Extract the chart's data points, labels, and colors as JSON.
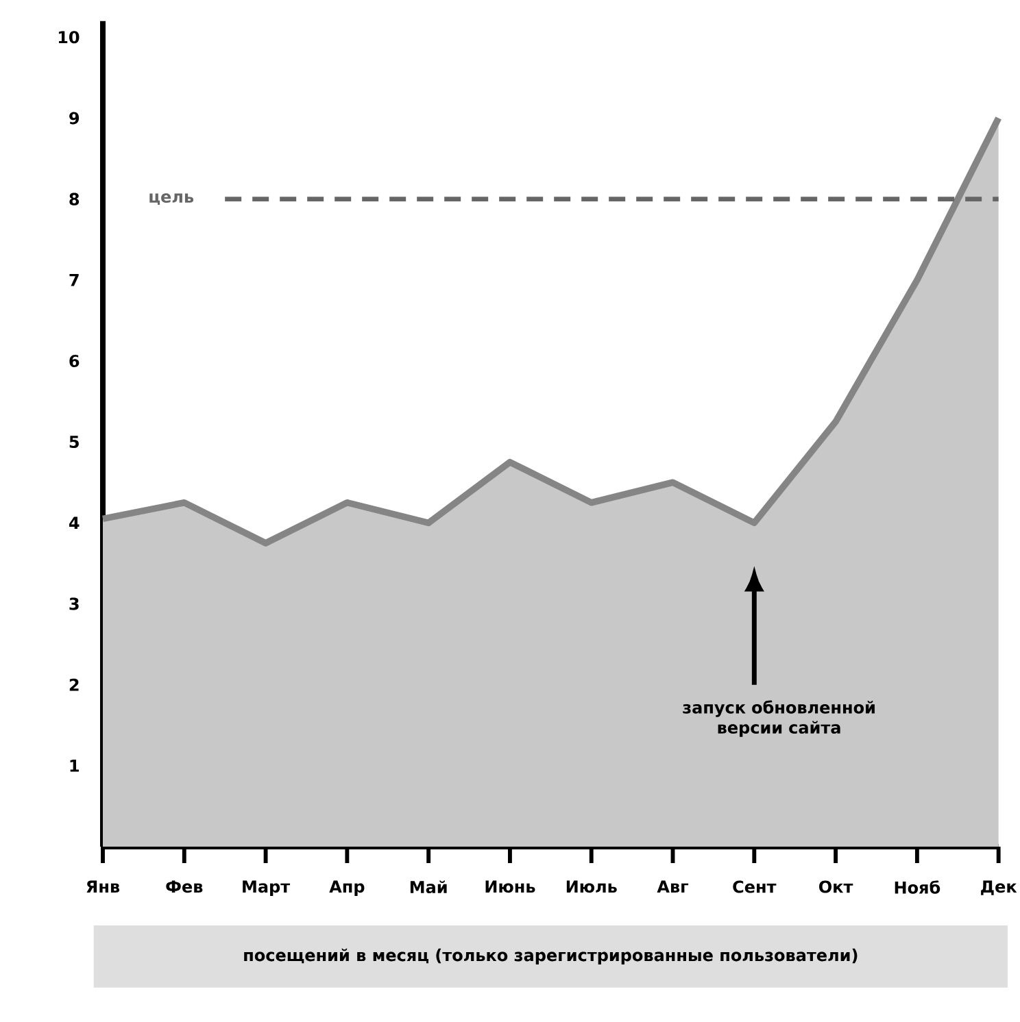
{
  "chart_data": {
    "type": "area",
    "categories": [
      "Янв",
      "Фев",
      "Март",
      "Апр",
      "Май",
      "Июнь",
      "Июль",
      "Авг",
      "Сент",
      "Окт",
      "Нояб",
      "Дек"
    ],
    "series": [
      {
        "color": "#858585",
        "values": [
          4.05,
          4.25,
          3.75,
          4.25,
          4.0,
          4.75,
          4.25,
          4.5,
          4.0,
          5.25,
          7.0,
          9.0
        ]
      }
    ],
    "ylim": [
      0,
      10.2
    ],
    "yticks": [
      1,
      2,
      3,
      4,
      5,
      6,
      7,
      8,
      9,
      10
    ],
    "xlabel": "посещений в месяц (только зарегистрированные пользователи)",
    "ref_lines": [
      {
        "axis": "y",
        "value": 8,
        "label": "цель",
        "color": "#666666",
        "line_style": "dashed"
      }
    ],
    "annotations": [
      "запуск обновленной версии сайта"
    ],
    "grid": false
  }
}
